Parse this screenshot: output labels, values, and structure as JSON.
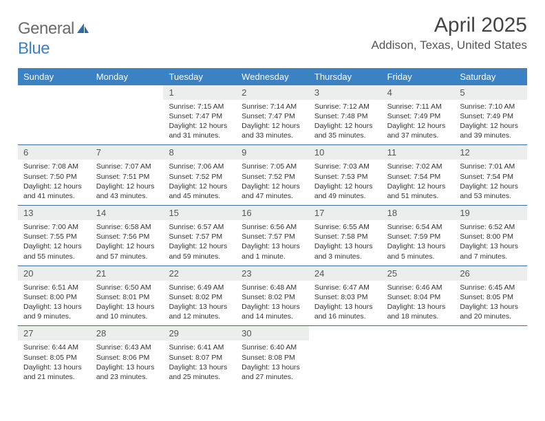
{
  "logo": {
    "text1": "General",
    "text2": "Blue"
  },
  "title": "April 2025",
  "location": "Addison, Texas, United States",
  "colors": {
    "header_bg": "#3b82c4",
    "header_text": "#ffffff",
    "daynum_bg": "#eceded",
    "week_border": "#3b6a99",
    "logo_gray": "#6b6b6b",
    "logo_blue": "#3b82c4"
  },
  "weekdays": [
    "Sunday",
    "Monday",
    "Tuesday",
    "Wednesday",
    "Thursday",
    "Friday",
    "Saturday"
  ],
  "weeks": [
    [
      {
        "n": "",
        "sr": "",
        "ss": "",
        "dl": ""
      },
      {
        "n": "",
        "sr": "",
        "ss": "",
        "dl": ""
      },
      {
        "n": "1",
        "sr": "Sunrise: 7:15 AM",
        "ss": "Sunset: 7:47 PM",
        "dl": "Daylight: 12 hours and 31 minutes."
      },
      {
        "n": "2",
        "sr": "Sunrise: 7:14 AM",
        "ss": "Sunset: 7:47 PM",
        "dl": "Daylight: 12 hours and 33 minutes."
      },
      {
        "n": "3",
        "sr": "Sunrise: 7:12 AM",
        "ss": "Sunset: 7:48 PM",
        "dl": "Daylight: 12 hours and 35 minutes."
      },
      {
        "n": "4",
        "sr": "Sunrise: 7:11 AM",
        "ss": "Sunset: 7:49 PM",
        "dl": "Daylight: 12 hours and 37 minutes."
      },
      {
        "n": "5",
        "sr": "Sunrise: 7:10 AM",
        "ss": "Sunset: 7:49 PM",
        "dl": "Daylight: 12 hours and 39 minutes."
      }
    ],
    [
      {
        "n": "6",
        "sr": "Sunrise: 7:08 AM",
        "ss": "Sunset: 7:50 PM",
        "dl": "Daylight: 12 hours and 41 minutes."
      },
      {
        "n": "7",
        "sr": "Sunrise: 7:07 AM",
        "ss": "Sunset: 7:51 PM",
        "dl": "Daylight: 12 hours and 43 minutes."
      },
      {
        "n": "8",
        "sr": "Sunrise: 7:06 AM",
        "ss": "Sunset: 7:52 PM",
        "dl": "Daylight: 12 hours and 45 minutes."
      },
      {
        "n": "9",
        "sr": "Sunrise: 7:05 AM",
        "ss": "Sunset: 7:52 PM",
        "dl": "Daylight: 12 hours and 47 minutes."
      },
      {
        "n": "10",
        "sr": "Sunrise: 7:03 AM",
        "ss": "Sunset: 7:53 PM",
        "dl": "Daylight: 12 hours and 49 minutes."
      },
      {
        "n": "11",
        "sr": "Sunrise: 7:02 AM",
        "ss": "Sunset: 7:54 PM",
        "dl": "Daylight: 12 hours and 51 minutes."
      },
      {
        "n": "12",
        "sr": "Sunrise: 7:01 AM",
        "ss": "Sunset: 7:54 PM",
        "dl": "Daylight: 12 hours and 53 minutes."
      }
    ],
    [
      {
        "n": "13",
        "sr": "Sunrise: 7:00 AM",
        "ss": "Sunset: 7:55 PM",
        "dl": "Daylight: 12 hours and 55 minutes."
      },
      {
        "n": "14",
        "sr": "Sunrise: 6:58 AM",
        "ss": "Sunset: 7:56 PM",
        "dl": "Daylight: 12 hours and 57 minutes."
      },
      {
        "n": "15",
        "sr": "Sunrise: 6:57 AM",
        "ss": "Sunset: 7:57 PM",
        "dl": "Daylight: 12 hours and 59 minutes."
      },
      {
        "n": "16",
        "sr": "Sunrise: 6:56 AM",
        "ss": "Sunset: 7:57 PM",
        "dl": "Daylight: 13 hours and 1 minute."
      },
      {
        "n": "17",
        "sr": "Sunrise: 6:55 AM",
        "ss": "Sunset: 7:58 PM",
        "dl": "Daylight: 13 hours and 3 minutes."
      },
      {
        "n": "18",
        "sr": "Sunrise: 6:54 AM",
        "ss": "Sunset: 7:59 PM",
        "dl": "Daylight: 13 hours and 5 minutes."
      },
      {
        "n": "19",
        "sr": "Sunrise: 6:52 AM",
        "ss": "Sunset: 8:00 PM",
        "dl": "Daylight: 13 hours and 7 minutes."
      }
    ],
    [
      {
        "n": "20",
        "sr": "Sunrise: 6:51 AM",
        "ss": "Sunset: 8:00 PM",
        "dl": "Daylight: 13 hours and 9 minutes."
      },
      {
        "n": "21",
        "sr": "Sunrise: 6:50 AM",
        "ss": "Sunset: 8:01 PM",
        "dl": "Daylight: 13 hours and 10 minutes."
      },
      {
        "n": "22",
        "sr": "Sunrise: 6:49 AM",
        "ss": "Sunset: 8:02 PM",
        "dl": "Daylight: 13 hours and 12 minutes."
      },
      {
        "n": "23",
        "sr": "Sunrise: 6:48 AM",
        "ss": "Sunset: 8:02 PM",
        "dl": "Daylight: 13 hours and 14 minutes."
      },
      {
        "n": "24",
        "sr": "Sunrise: 6:47 AM",
        "ss": "Sunset: 8:03 PM",
        "dl": "Daylight: 13 hours and 16 minutes."
      },
      {
        "n": "25",
        "sr": "Sunrise: 6:46 AM",
        "ss": "Sunset: 8:04 PM",
        "dl": "Daylight: 13 hours and 18 minutes."
      },
      {
        "n": "26",
        "sr": "Sunrise: 6:45 AM",
        "ss": "Sunset: 8:05 PM",
        "dl": "Daylight: 13 hours and 20 minutes."
      }
    ],
    [
      {
        "n": "27",
        "sr": "Sunrise: 6:44 AM",
        "ss": "Sunset: 8:05 PM",
        "dl": "Daylight: 13 hours and 21 minutes."
      },
      {
        "n": "28",
        "sr": "Sunrise: 6:43 AM",
        "ss": "Sunset: 8:06 PM",
        "dl": "Daylight: 13 hours and 23 minutes."
      },
      {
        "n": "29",
        "sr": "Sunrise: 6:41 AM",
        "ss": "Sunset: 8:07 PM",
        "dl": "Daylight: 13 hours and 25 minutes."
      },
      {
        "n": "30",
        "sr": "Sunrise: 6:40 AM",
        "ss": "Sunset: 8:08 PM",
        "dl": "Daylight: 13 hours and 27 minutes."
      },
      {
        "n": "",
        "sr": "",
        "ss": "",
        "dl": ""
      },
      {
        "n": "",
        "sr": "",
        "ss": "",
        "dl": ""
      },
      {
        "n": "",
        "sr": "",
        "ss": "",
        "dl": ""
      }
    ]
  ]
}
